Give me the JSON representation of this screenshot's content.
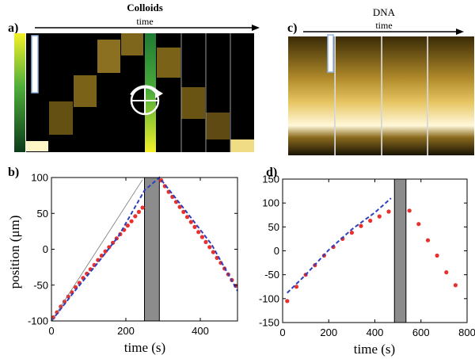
{
  "panels": {
    "a": {
      "letter": "a)",
      "title": "Colloids",
      "arrow_label": "time"
    },
    "c": {
      "letter": "c)",
      "title": "DNA",
      "arrow_label": "time"
    },
    "b": {
      "letter": "b)"
    },
    "d": {
      "letter": "d)"
    }
  },
  "colors": {
    "points": "#e8312c",
    "fit": "#2e3fbf",
    "gap_box": "#8c8c8c",
    "kymo_background": "#000000",
    "kymo_glow": "#f2d66a"
  },
  "chart_data": [
    {
      "type": "scatter",
      "panel": "b",
      "xlabel": "time (s)",
      "ylabel": "position (μm)",
      "xlim": [
        0,
        500
      ],
      "ylim": [
        -100,
        100
      ],
      "xticks": [
        0,
        200,
        400
      ],
      "yticks": [
        -100,
        -50,
        0,
        50,
        100
      ],
      "shaded_interval": [
        250,
        290
      ],
      "series": [
        {
          "style": "points",
          "x": [
            5,
            15,
            25,
            35,
            45,
            55,
            65,
            75,
            85,
            95,
            105,
            115,
            125,
            135,
            145,
            155,
            165,
            175,
            185,
            195,
            205,
            215,
            225,
            235,
            245,
            295,
            305,
            315,
            325,
            335,
            345,
            355,
            365,
            375,
            385,
            395,
            405,
            415,
            425,
            435,
            445,
            455,
            465,
            475,
            485,
            495
          ],
          "y": [
            -95,
            -88,
            -80,
            -73,
            -66,
            -60,
            -53,
            -47,
            -40,
            -34,
            -28,
            -22,
            -15,
            -9,
            -3,
            3,
            9,
            15,
            21,
            27,
            33,
            39,
            46,
            52,
            58,
            96,
            88,
            80,
            73,
            66,
            59,
            52,
            45,
            38,
            31,
            24,
            17,
            10,
            3,
            -4,
            -12,
            -19,
            -27,
            -35,
            -43,
            -51
          ]
        },
        {
          "style": "dashed-line",
          "x": [
            0,
            60,
            120,
            180,
            250,
            290,
            360,
            430,
            500
          ],
          "y": [
            -100,
            -60,
            -22,
            18,
            82,
            100,
            54,
            7,
            -58
          ]
        },
        {
          "style": "thin-line",
          "x": [
            0,
            245
          ],
          "y": [
            -100,
            97
          ]
        }
      ]
    },
    {
      "type": "scatter",
      "panel": "d",
      "xlabel": "time (s)",
      "ylabel": "",
      "xlim": [
        0,
        800
      ],
      "ylim": [
        -150,
        150
      ],
      "xticks": [
        0,
        200,
        400,
        600,
        800
      ],
      "yticks": [
        -150,
        -100,
        -50,
        0,
        50,
        100,
        150
      ],
      "shaded_interval": [
        485,
        535
      ],
      "series": [
        {
          "style": "points",
          "x": [
            20,
            60,
            100,
            140,
            180,
            220,
            260,
            300,
            340,
            380,
            420,
            460,
            550,
            590,
            630,
            670,
            710,
            750
          ],
          "y": [
            -105,
            -75,
            -50,
            -30,
            -10,
            8,
            25,
            38,
            52,
            63,
            72,
            82,
            84,
            56,
            22,
            -10,
            -45,
            -72
          ]
        },
        {
          "style": "dashed-line",
          "x": [
            20,
            100,
            200,
            300,
            400,
            470
          ],
          "y": [
            -88,
            -50,
            2,
            45,
            80,
            110
          ]
        }
      ]
    }
  ]
}
